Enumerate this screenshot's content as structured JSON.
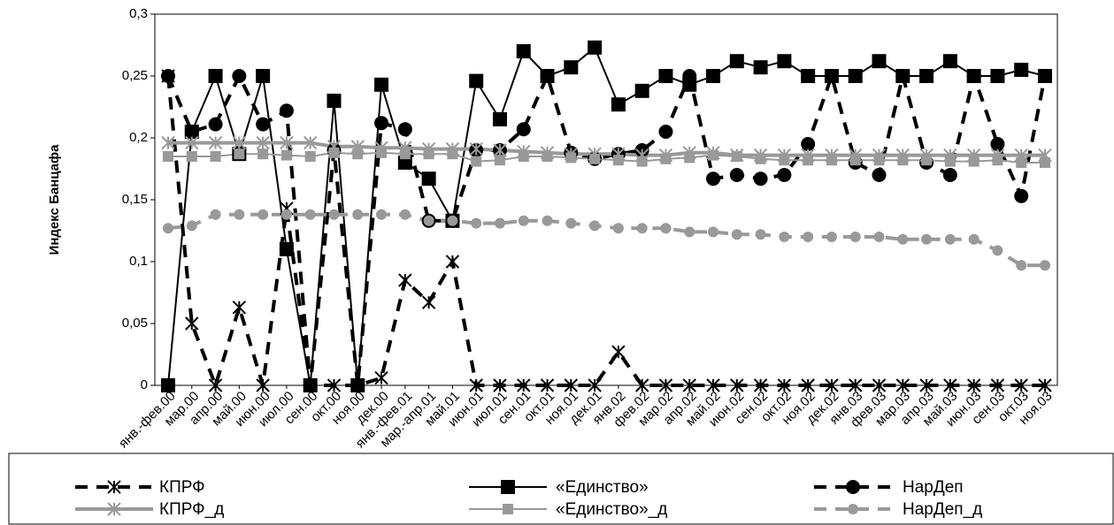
{
  "chart_data": {
    "type": "line",
    "y_label": "Индекс Банцафа",
    "categories": [
      "янв.-фев.00",
      "мар.00",
      "апр.00",
      "май.00",
      "июн.00",
      "июл.00",
      "сен.00",
      "окт.00",
      "ноя.00",
      "дек.00",
      "янв.-фев.01",
      "мар.-апр.01",
      "май.01",
      "июн.01",
      "июл.01",
      "сен.01",
      "окт.01",
      "ноя.01",
      "дек.01",
      "янв.02",
      "фев.02",
      "мар.02",
      "апр.02",
      "май.02",
      "июн.02",
      "сен.02",
      "окт.02",
      "ноя.02",
      "дек.02",
      "янв.03",
      "фев.03",
      "мар.03",
      "апр.03",
      "май.03",
      "июн.03",
      "сен.03",
      "окт.03",
      "ноя.03"
    ],
    "ylim": [
      0,
      0.3
    ],
    "yticks": [
      {
        "value": 0,
        "label": "0"
      },
      {
        "value": 0.05,
        "label": "0,05"
      },
      {
        "value": 0.1,
        "label": "0,1"
      },
      {
        "value": 0.15,
        "label": "0,15"
      },
      {
        "value": 0.2,
        "label": "0,2"
      },
      {
        "value": 0.25,
        "label": "0,25"
      },
      {
        "value": 0.3,
        "label": "0,3"
      }
    ],
    "series": [
      {
        "name": "КПРФ",
        "color": "#000000",
        "marker": "x",
        "dash": true,
        "width": 4,
        "values": [
          0.25,
          0.05,
          0,
          0.063,
          0,
          0.143,
          0,
          0,
          0,
          0.006,
          0.085,
          0.067,
          0.1,
          0,
          0,
          0,
          0,
          0,
          0,
          0.027,
          0,
          0,
          0,
          0,
          0,
          0,
          0,
          0,
          0,
          0,
          0,
          0,
          0,
          0,
          0,
          0,
          0,
          0
        ]
      },
      {
        "name": "«Единство»",
        "color": "#000000",
        "marker": "square",
        "dash": false,
        "width": 2,
        "values": [
          0,
          0.205,
          0.25,
          0.187,
          0.25,
          0.11,
          0,
          0.23,
          0,
          0.243,
          0.18,
          0.167,
          0.133,
          0.246,
          0.215,
          0.27,
          0.25,
          0.257,
          0.273,
          0.227,
          0.238,
          0.25,
          0.243,
          0.25,
          0.262,
          0.257,
          0.262,
          0.25,
          0.25,
          0.25,
          0.262,
          0.25,
          0.25,
          0.262,
          0.25,
          0.25,
          0.255,
          0.25
        ]
      },
      {
        "name": "НарДеп",
        "color": "#000000",
        "marker": "circle",
        "dash": true,
        "width": 4,
        "values": [
          0.25,
          0.205,
          0.211,
          0.25,
          0.211,
          0.222,
          0,
          0.19,
          0,
          0.212,
          0.207,
          0.133,
          0.133,
          0.19,
          0.19,
          0.207,
          0.25,
          0.188,
          0.183,
          0.187,
          0.19,
          0.205,
          0.25,
          0.167,
          0.17,
          0.167,
          0.17,
          0.195,
          0.25,
          0.18,
          0.17,
          0.25,
          0.18,
          0.17,
          0.25,
          0.195,
          0.153,
          0.25
        ]
      },
      {
        "name": "КПРФ_д",
        "color": "#999999",
        "marker": "x",
        "dash": false,
        "width": 4,
        "values": [
          0.196,
          0.196,
          0.196,
          0.196,
          0.196,
          0.196,
          0.196,
          0.193,
          0.193,
          0.192,
          0.192,
          0.191,
          0.191,
          0.191,
          0.19,
          0.189,
          0.188,
          0.187,
          0.187,
          0.187,
          0.186,
          0.186,
          0.188,
          0.188,
          0.186,
          0.186,
          0.186,
          0.186,
          0.186,
          0.186,
          0.186,
          0.186,
          0.186,
          0.186,
          0.186,
          0.186,
          0.186,
          0.186
        ]
      },
      {
        "name": "«Единство»_д",
        "color": "#999999",
        "marker": "square",
        "dash": false,
        "width": 2,
        "values": [
          0.185,
          0.185,
          0.185,
          0.187,
          0.187,
          0.186,
          0.185,
          0.188,
          0.187,
          0.188,
          0.187,
          0.187,
          0.187,
          0.181,
          0.182,
          0.185,
          0.185,
          0.184,
          0.183,
          0.182,
          0.181,
          0.183,
          0.184,
          0.186,
          0.185,
          0.183,
          0.182,
          0.182,
          0.182,
          0.182,
          0.182,
          0.182,
          0.182,
          0.181,
          0.181,
          0.182,
          0.18,
          0.18
        ]
      },
      {
        "name": "НарДеп_д",
        "color": "#999999",
        "marker": "circle",
        "dash": true,
        "width": 4,
        "values": [
          0.127,
          0.129,
          0.138,
          0.138,
          0.138,
          0.138,
          0.138,
          0.138,
          0.138,
          0.138,
          0.138,
          0.133,
          0.133,
          0.131,
          0.131,
          0.133,
          0.133,
          0.131,
          0.129,
          0.127,
          0.127,
          0.127,
          0.124,
          0.124,
          0.122,
          0.122,
          0.12,
          0.12,
          0.12,
          0.12,
          0.12,
          0.118,
          0.118,
          0.118,
          0.118,
          0.109,
          0.097,
          0.097
        ]
      }
    ]
  }
}
